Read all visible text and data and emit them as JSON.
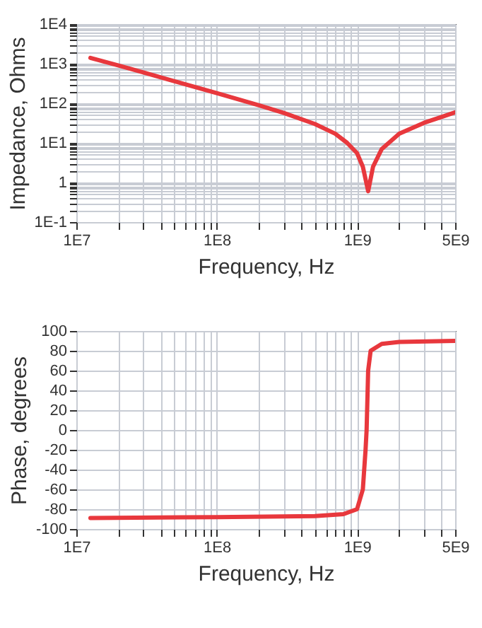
{
  "chart_data": [
    {
      "type": "line",
      "xlabel": "Frequency, Hz",
      "ylabel": "Impedance, Ohms",
      "log": "xy",
      "grid": true,
      "line_style": "solid",
      "xlim": [
        10000000.0,
        5000000000.0
      ],
      "ylim": [
        0.1,
        10000
      ],
      "xticks": [
        {
          "value": 10000000.0,
          "label": "1E7"
        },
        {
          "value": 20000000.0,
          "label": null
        },
        {
          "value": 30000000.0,
          "label": null
        },
        {
          "value": 40000000.0,
          "label": null
        },
        {
          "value": 50000000.0,
          "label": null
        },
        {
          "value": 60000000.0,
          "label": null
        },
        {
          "value": 70000000.0,
          "label": null
        },
        {
          "value": 80000000.0,
          "label": null
        },
        {
          "value": 90000000.0,
          "label": null
        },
        {
          "value": 100000000.0,
          "label": "1E8"
        },
        {
          "value": 200000000.0,
          "label": null
        },
        {
          "value": 300000000.0,
          "label": null
        },
        {
          "value": 400000000.0,
          "label": null
        },
        {
          "value": 500000000.0,
          "label": null
        },
        {
          "value": 600000000.0,
          "label": null
        },
        {
          "value": 700000000.0,
          "label": null
        },
        {
          "value": 800000000.0,
          "label": null
        },
        {
          "value": 900000000.0,
          "label": null
        },
        {
          "value": 1000000000.0,
          "label": "1E9"
        },
        {
          "value": 2000000000.0,
          "label": null
        },
        {
          "value": 3000000000.0,
          "label": null
        },
        {
          "value": 4000000000.0,
          "label": null
        },
        {
          "value": 5000000000.0,
          "label": "5E9"
        }
      ],
      "yticks": [
        {
          "value": 0.1,
          "label": "1E-1"
        },
        {
          "value": 0.2,
          "label": null
        },
        {
          "value": 0.3,
          "label": null
        },
        {
          "value": 0.4,
          "label": null
        },
        {
          "value": 0.5,
          "label": null
        },
        {
          "value": 0.6,
          "label": null
        },
        {
          "value": 0.7,
          "label": null
        },
        {
          "value": 0.8,
          "label": null
        },
        {
          "value": 0.9,
          "label": null
        },
        1,
        {
          "value": 2,
          "label": null
        },
        {
          "value": 3,
          "label": null
        },
        {
          "value": 4,
          "label": null
        },
        {
          "value": 5,
          "label": null
        },
        {
          "value": 6,
          "label": null
        },
        {
          "value": 7,
          "label": null
        },
        {
          "value": 8,
          "label": null
        },
        {
          "value": 9,
          "label": null
        },
        {
          "value": 10,
          "label": "1E1"
        },
        {
          "value": 20,
          "label": null
        },
        {
          "value": 30,
          "label": null
        },
        {
          "value": 40,
          "label": null
        },
        {
          "value": 50,
          "label": null
        },
        {
          "value": 60,
          "label": null
        },
        {
          "value": 70,
          "label": null
        },
        {
          "value": 80,
          "label": null
        },
        {
          "value": 90,
          "label": null
        },
        {
          "value": 100,
          "label": "1E2"
        },
        {
          "value": 200,
          "label": null
        },
        {
          "value": 300,
          "label": null
        },
        {
          "value": 400,
          "label": null
        },
        {
          "value": 500,
          "label": null
        },
        {
          "value": 600,
          "label": null
        },
        {
          "value": 700,
          "label": null
        },
        {
          "value": 800,
          "label": null
        },
        {
          "value": 900,
          "label": null
        },
        {
          "value": 1000,
          "label": "1E3"
        },
        {
          "value": 2000,
          "label": null
        },
        {
          "value": 3000,
          "label": null
        },
        {
          "value": 4000,
          "label": null
        },
        {
          "value": 5000,
          "label": null
        },
        {
          "value": 6000,
          "label": null
        },
        {
          "value": 7000,
          "label": null
        },
        {
          "value": 8000,
          "label": null
        },
        {
          "value": 9000,
          "label": null
        },
        {
          "value": 10000,
          "label": "1E4"
        }
      ],
      "series": [
        {
          "color": "#e8383d",
          "x": [
            12600000.0,
            20000000.0,
            30000000.0,
            50000000.0,
            100000000.0,
            200000000.0,
            300000000.0,
            500000000.0,
            700000000.0,
            850000000.0,
            1000000000.0,
            1100000000.0,
            1200000000.0,
            1300000000.0,
            1500000000.0,
            2000000000.0,
            3000000000.0,
            4000000000.0,
            5000000000.0
          ],
          "values": [
            1400,
            900,
            600,
            360,
            180,
            89,
            57,
            30,
            17,
            10,
            5.5,
            2.5,
            0.6,
            2.5,
            7,
            17,
            32,
            45,
            59
          ]
        }
      ]
    },
    {
      "type": "line",
      "xlabel": "Frequency, Hz",
      "ylabel": "Phase, degrees",
      "log": "x",
      "grid": true,
      "line_style": "solid",
      "xlim": [
        10000000.0,
        5000000000.0
      ],
      "ylim": [
        -100,
        100
      ],
      "xticks": [
        {
          "value": 10000000.0,
          "label": "1E7"
        },
        {
          "value": 20000000.0,
          "label": null
        },
        {
          "value": 30000000.0,
          "label": null
        },
        {
          "value": 40000000.0,
          "label": null
        },
        {
          "value": 50000000.0,
          "label": null
        },
        {
          "value": 60000000.0,
          "label": null
        },
        {
          "value": 70000000.0,
          "label": null
        },
        {
          "value": 80000000.0,
          "label": null
        },
        {
          "value": 90000000.0,
          "label": null
        },
        {
          "value": 100000000.0,
          "label": "1E8"
        },
        {
          "value": 200000000.0,
          "label": null
        },
        {
          "value": 300000000.0,
          "label": null
        },
        {
          "value": 400000000.0,
          "label": null
        },
        {
          "value": 500000000.0,
          "label": null
        },
        {
          "value": 600000000.0,
          "label": null
        },
        {
          "value": 700000000.0,
          "label": null
        },
        {
          "value": 800000000.0,
          "label": null
        },
        {
          "value": 900000000.0,
          "label": null
        },
        {
          "value": 1000000000.0,
          "label": "1E9"
        },
        {
          "value": 2000000000.0,
          "label": null
        },
        {
          "value": 3000000000.0,
          "label": null
        },
        {
          "value": 4000000000.0,
          "label": null
        },
        {
          "value": 5000000000.0,
          "label": "5E9"
        }
      ],
      "yticks": [
        -100,
        -80,
        -60,
        -40,
        -20,
        0,
        20,
        40,
        60,
        80,
        100
      ],
      "series": [
        {
          "color": "#e8383d",
          "x": [
            12600000.0,
            100000000.0,
            500000000.0,
            800000000.0,
            1000000000.0,
            1100000000.0,
            1150000000.0,
            1170000000.0,
            1190000000.0,
            1200000000.0,
            1250000000.0,
            1500000000.0,
            2000000000.0,
            5000000000.0
          ],
          "values": [
            -89,
            -88,
            -87,
            -85,
            -80,
            -60,
            -20,
            0,
            40,
            60,
            80,
            87,
            89,
            90
          ]
        }
      ]
    }
  ]
}
